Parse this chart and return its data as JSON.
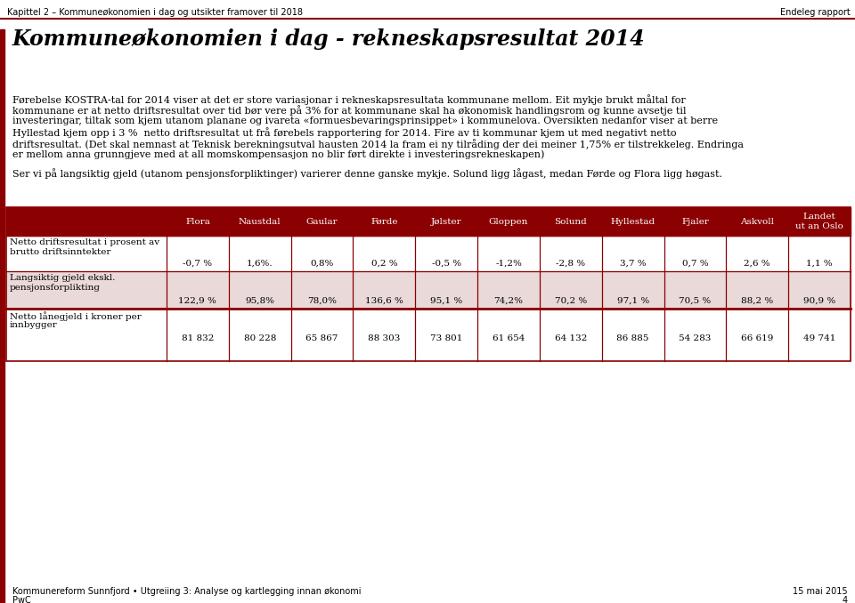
{
  "header_left": "Kapittel 2 – Kommuneøkonomien i dag og utsikter framover til 2018",
  "header_right": "Endeleg rapport",
  "title": "Kommuneøkonomien i dag - rekneskapsresultat 2014",
  "body1_lines": [
    "Førebelse KOSTRA-tal for 2014 viser at det er store variasjonar i rekneskapsresultata kommunane mellom. Eit mykje brukt måltal for",
    "kommunane er at netto driftsresultat over tid bør vere på 3% for at kommunane skal ha økonomisk handlingsrom og kunne avsetje til",
    "investeringar, tiltak som kjem utanom planane og ivareta «formuesbevaringsprinsippet» i kommunelova. Oversikten nedanfor viser at berre",
    "Hyllestad kjem opp i 3 %  netto driftsresultat ut frå førebels rapportering for 2014. Fire av ti kommunar kjem ut med negativt netto",
    "driftsresultat. (Det skal nemnast at Teknisk berekningsutval hausten 2014 la fram ei ny tilråding der dei meiner 1,75% er tilstrekkeleg. Endringa",
    "er mellom anna grunngjeve med at all momskompensasjon no blir ført direkte i investeringsrekneskapen)"
  ],
  "body2": "Ser vi på langsiktig gjeld (utanom pensjonsforpliktinger) varierer denne ganske mykje. Solund ligg lågast, medan Førde og Flora ligg høgast.",
  "footer_left1": "Kommunereform Sunnfjord • Utgreiing 3: Analyse og kartlegging innan økonomi",
  "footer_left2": "PwC",
  "footer_right1": "15 mai 2015",
  "footer_right2": "4",
  "columns": [
    "Flora",
    "Naustdal",
    "Gaular",
    "Førde",
    "Jølster",
    "Gloppen",
    "Solund",
    "Hyllestad",
    "Fjaler",
    "Askvoll",
    "Landet\nut an Oslo"
  ],
  "row_labels": [
    [
      "Netto driftsresultat i prosent av",
      "brutto driftsinntekter"
    ],
    [
      "Langsiktig gjeld ekskl.",
      "pensjonsforplikting"
    ],
    [
      "Netto lånegjeld i kroner per",
      "innbygger"
    ]
  ],
  "table_data": [
    [
      "-0,7 %",
      "1,6%.",
      "0,8%",
      "0,2 %",
      "-0,5 %",
      "-1,2%",
      "-2,8 %",
      "3,7 %",
      "0,7 %",
      "2,6 %",
      "1,1 %"
    ],
    [
      "122,9 %",
      "95,8%",
      "78,0%",
      "136,6 %",
      "95,1 %",
      "74,2%",
      "70,2 %",
      "97,1 %",
      "70,5 %",
      "88,2 %",
      "90,9 %"
    ],
    [
      "81 832",
      "80 228",
      "65 867",
      "88 303",
      "73 801",
      "61 654",
      "64 132",
      "86 885",
      "54 283",
      "66 619",
      "49 741"
    ]
  ],
  "bg_color": "#ffffff",
  "border_color": "#8B0000",
  "header_shade_color": "#8B0000",
  "row2_shade_color": "#c0504d",
  "text_color": "#000000",
  "white": "#ffffff"
}
